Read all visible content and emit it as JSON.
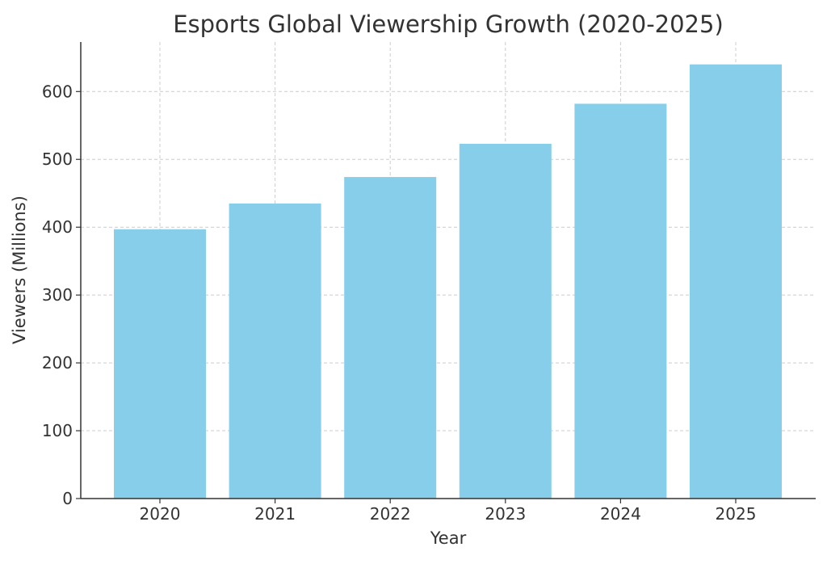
{
  "chart_data": {
    "type": "bar",
    "title": "Esports Global Viewership Growth (2020-2025)",
    "xlabel": "Year",
    "ylabel": "Viewers (Millions)",
    "categories": [
      "2020",
      "2021",
      "2022",
      "2023",
      "2024",
      "2025"
    ],
    "values": [
      397,
      435,
      474,
      523,
      582,
      640
    ],
    "ylim": [
      0,
      673
    ],
    "yticks": [
      0,
      100,
      200,
      300,
      400,
      500,
      600
    ],
    "grid": true,
    "bar_color": "#87ceeb"
  }
}
